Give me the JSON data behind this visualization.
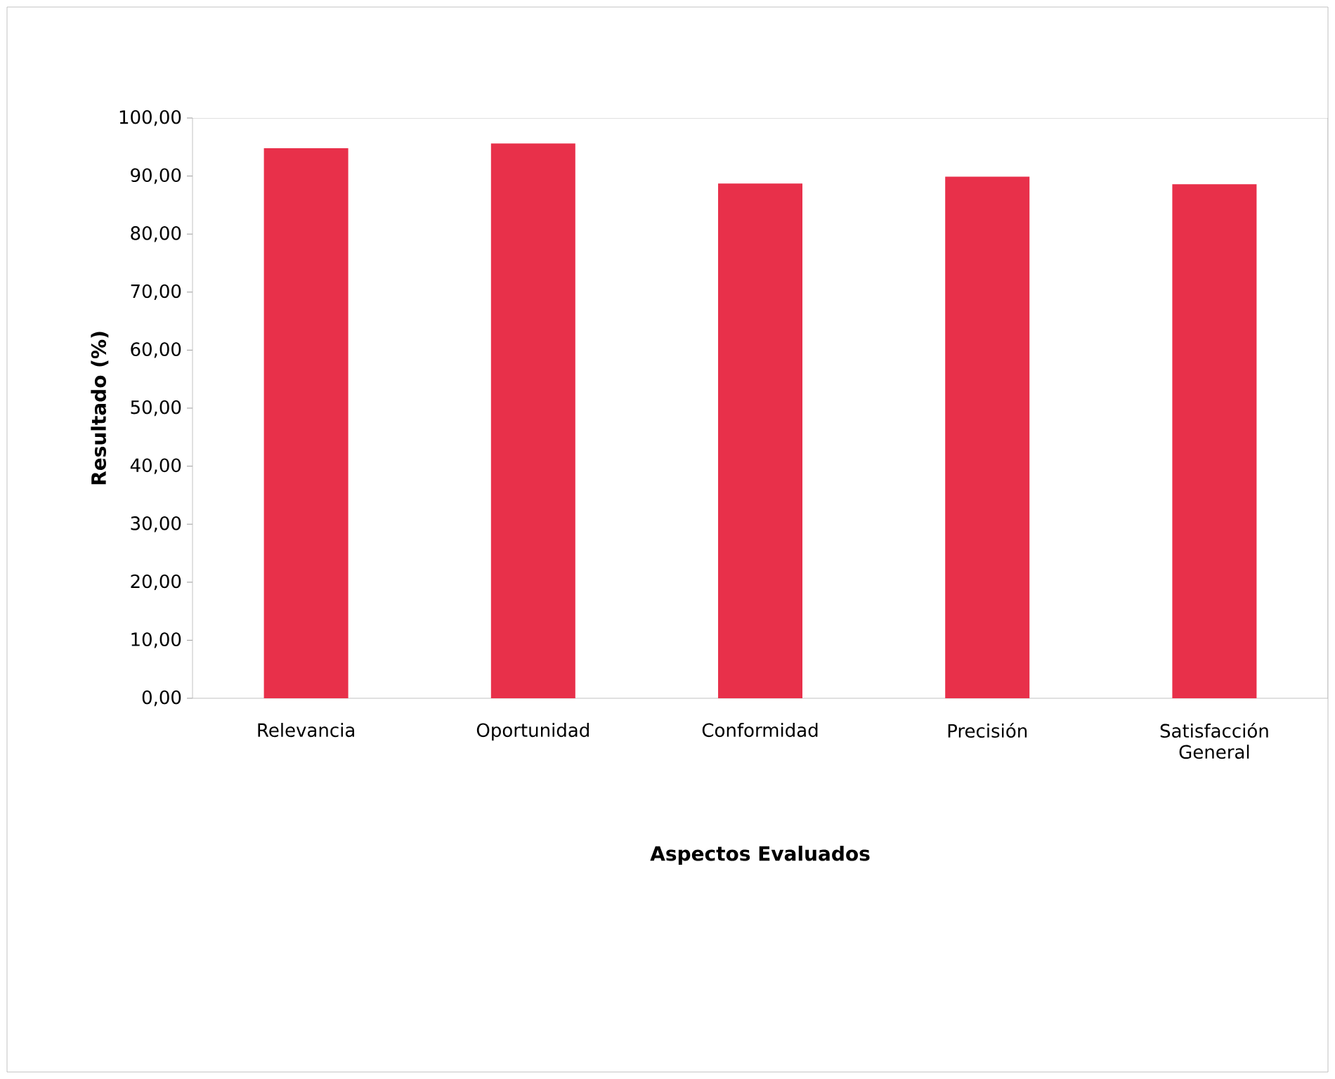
{
  "chart_data": {
    "type": "bar",
    "xlabel": "Aspectos Evaluados",
    "ylabel": "Resultado (%)",
    "categories": [
      "Relevancia",
      "Oportunidad",
      "Conformidad",
      "Precisión",
      "Satisfacción General"
    ],
    "values": [
      94.8,
      95.6,
      88.7,
      89.9,
      88.6
    ],
    "color": "#e8304a",
    "ylim": [
      0,
      100
    ],
    "yticks": [
      {
        "value": 0,
        "label": "0,00"
      },
      {
        "value": 10,
        "label": "10,00"
      },
      {
        "value": 20,
        "label": "20,00"
      },
      {
        "value": 30,
        "label": "30,00"
      },
      {
        "value": 40,
        "label": "40,00"
      },
      {
        "value": 50,
        "label": "50,00"
      },
      {
        "value": 60,
        "label": "60,00"
      },
      {
        "value": 70,
        "label": "70,00"
      },
      {
        "value": 80,
        "label": "80,00"
      },
      {
        "value": 90,
        "label": "90,00"
      },
      {
        "value": 100,
        "label": "100,00"
      }
    ],
    "grid": false
  }
}
